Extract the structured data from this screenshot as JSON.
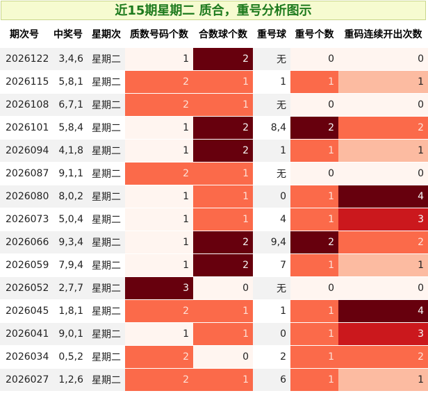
{
  "title": "近15期星期二 质合，重号分析图示",
  "headers": [
    "期次号",
    "中奖号",
    "星期次",
    "质数号码个数",
    "合数球个数",
    "重号球",
    "重号个数",
    "重码连续开出次数"
  ],
  "colors": {
    "level0": "#fff5f0",
    "level1": "#fcbba1",
    "level2": "#fb6a4a",
    "level3": "#cb181d",
    "level4": "#67000d",
    "title_bg": "#f6fbd0",
    "title_text": "#1d7a1d"
  },
  "chart_data": {
    "type": "table",
    "columns": [
      "期次号",
      "中奖号",
      "星期次",
      "质数号码个数",
      "合数球个数",
      "重号球",
      "重号个数",
      "重码连续开出次数"
    ],
    "rows": [
      [
        "2026122",
        "3,4,6",
        "星期二",
        1,
        2,
        "无",
        0,
        0
      ],
      [
        "2026115",
        "5,8,1",
        "星期二",
        2,
        1,
        "1",
        1,
        1
      ],
      [
        "2026108",
        "6,7,1",
        "星期二",
        2,
        1,
        "无",
        0,
        0
      ],
      [
        "2026101",
        "5,8,4",
        "星期二",
        1,
        2,
        "8,4",
        2,
        2
      ],
      [
        "2026094",
        "4,1,8",
        "星期二",
        1,
        2,
        "1",
        1,
        1
      ],
      [
        "2026087",
        "9,1,1",
        "星期二",
        2,
        1,
        "无",
        0,
        0
      ],
      [
        "2026080",
        "8,0,2",
        "星期二",
        1,
        1,
        "0",
        1,
        4
      ],
      [
        "2026073",
        "5,0,4",
        "星期二",
        1,
        1,
        "4",
        1,
        3
      ],
      [
        "2026066",
        "9,3,4",
        "星期二",
        1,
        2,
        "9,4",
        2,
        2
      ],
      [
        "2026059",
        "7,9,4",
        "星期二",
        1,
        2,
        "7",
        1,
        1
      ],
      [
        "2026052",
        "2,7,7",
        "星期二",
        3,
        0,
        "无",
        0,
        0
      ],
      [
        "2026045",
        "1,8,1",
        "星期二",
        2,
        1,
        "1",
        1,
        4
      ],
      [
        "2026041",
        "9,0,1",
        "星期二",
        1,
        1,
        "0",
        1,
        3
      ],
      [
        "2026034",
        "0,5,2",
        "星期二",
        2,
        0,
        "2",
        1,
        2
      ],
      [
        "2026027",
        "1,2,6",
        "星期二",
        2,
        1,
        "6",
        1,
        1
      ]
    ],
    "cell_levels": {
      "质数号码个数": [
        0,
        2,
        2,
        0,
        0,
        2,
        0,
        0,
        0,
        0,
        4,
        2,
        0,
        2,
        2
      ],
      "合数球个数": [
        4,
        2,
        2,
        4,
        4,
        2,
        2,
        2,
        4,
        4,
        0,
        2,
        2,
        0,
        2
      ],
      "重号个数": [
        0,
        2,
        0,
        4,
        2,
        0,
        2,
        2,
        4,
        2,
        0,
        2,
        2,
        2,
        2
      ],
      "重码连续开出次数": [
        0,
        1,
        0,
        2,
        1,
        0,
        4,
        3,
        2,
        1,
        0,
        4,
        3,
        2,
        1
      ]
    }
  }
}
